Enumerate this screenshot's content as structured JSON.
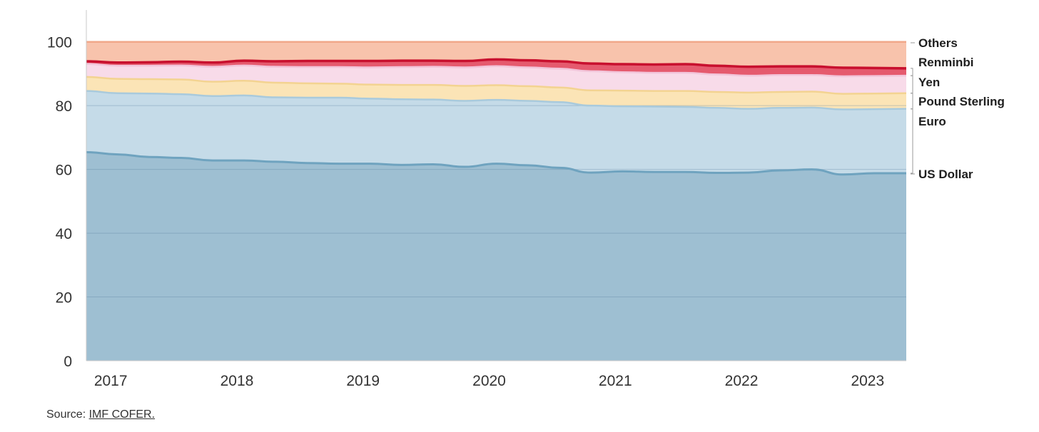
{
  "chart_data": {
    "type": "area",
    "stacked": true,
    "title": "",
    "xlabel": "",
    "ylabel": "",
    "ylim": [
      0,
      110
    ],
    "yticks": [
      0,
      20,
      40,
      60,
      80,
      100
    ],
    "xlim": [
      2016.75,
      2023.25
    ],
    "xtick_labels": [
      "2017",
      "2018",
      "2019",
      "2020",
      "2021",
      "2022",
      "2023"
    ],
    "grid": true,
    "legend_position": "right",
    "x": [
      2016.75,
      2017.0,
      2017.25,
      2017.5,
      2017.75,
      2018.0,
      2018.25,
      2018.5,
      2018.75,
      2019.0,
      2019.25,
      2019.5,
      2019.75,
      2020.0,
      2020.25,
      2020.5,
      2020.75,
      2021.0,
      2021.25,
      2021.5,
      2021.75,
      2022.0,
      2022.25,
      2022.5,
      2022.75,
      2023.0,
      2023.25
    ],
    "series": [
      {
        "name": "US Dollar",
        "color": "#9ebfd2",
        "line_color": "#6fa3bf",
        "values": [
          65.4,
          64.7,
          63.9,
          63.6,
          62.8,
          62.8,
          62.4,
          62.0,
          61.8,
          61.8,
          61.4,
          61.6,
          60.8,
          61.8,
          61.3,
          60.5,
          59.0,
          59.4,
          59.2,
          59.2,
          58.9,
          59.0,
          59.7,
          60.0,
          58.4,
          58.8,
          58.8
        ]
      },
      {
        "name": "Euro",
        "color": "#c5dbe8",
        "line_color": "#a9cadc",
        "values": [
          19.2,
          19.2,
          19.9,
          20.0,
          20.2,
          20.4,
          20.2,
          20.5,
          20.7,
          20.4,
          20.6,
          20.3,
          20.7,
          20.0,
          20.2,
          20.6,
          21.0,
          20.4,
          20.5,
          20.4,
          20.4,
          20.0,
          19.6,
          19.4,
          20.4,
          20.1,
          20.2
        ]
      },
      {
        "name": "Pound Sterling",
        "color": "#fbe4b6",
        "line_color": "#f3d391",
        "values": [
          4.4,
          4.5,
          4.5,
          4.6,
          4.5,
          4.6,
          4.6,
          4.5,
          4.4,
          4.4,
          4.5,
          4.6,
          4.7,
          4.6,
          4.6,
          4.6,
          4.8,
          4.9,
          4.9,
          5.0,
          5.0,
          5.1,
          5.0,
          5.0,
          4.9,
          4.9,
          4.9
        ]
      },
      {
        "name": "Yen",
        "color": "#f8dbe9",
        "line_color": "#f2c5da",
        "values": [
          4.1,
          4.1,
          4.2,
          4.4,
          4.7,
          4.8,
          5.0,
          5.1,
          5.2,
          5.4,
          5.6,
          5.7,
          5.8,
          6.0,
          5.9,
          5.9,
          6.0,
          5.8,
          5.7,
          5.7,
          5.5,
          5.3,
          5.3,
          5.2,
          5.5,
          5.5,
          5.5
        ]
      },
      {
        "name": "Renminbi",
        "color": "#e55a6e",
        "line_color": "#c8102e",
        "values": [
          0.8,
          1.0,
          1.1,
          1.2,
          1.3,
          1.5,
          1.7,
          1.9,
          1.9,
          2.0,
          2.0,
          1.9,
          2.0,
          2.1,
          2.2,
          2.3,
          2.4,
          2.5,
          2.6,
          2.7,
          2.7,
          2.8,
          2.7,
          2.7,
          2.7,
          2.5,
          2.3
        ]
      },
      {
        "name": "Others",
        "color": "#f8c3ac",
        "line_color": "#f1a88a",
        "values": [
          6.1,
          6.5,
          6.4,
          6.2,
          6.5,
          5.9,
          6.1,
          6.0,
          6.0,
          6.0,
          5.9,
          5.9,
          6.0,
          5.5,
          5.8,
          6.1,
          6.8,
          7.0,
          7.1,
          7.0,
          7.5,
          7.8,
          7.7,
          7.7,
          8.1,
          8.2,
          8.3
        ]
      }
    ]
  },
  "source": {
    "prefix": "Source: ",
    "link_text": "IMF COFER."
  }
}
